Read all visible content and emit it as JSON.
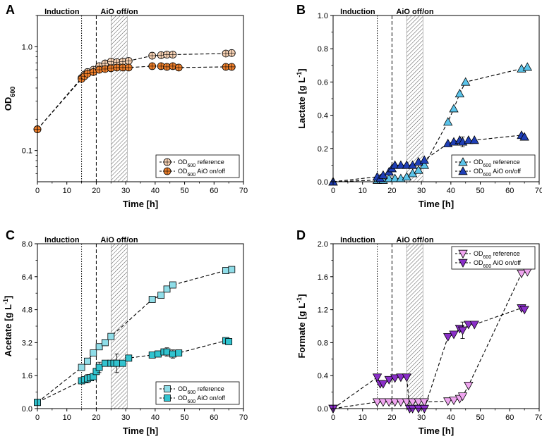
{
  "figure": {
    "background": "#ffffff"
  },
  "chart_data": [
    {
      "panel": "A",
      "type": "scatter",
      "yscale": "log",
      "xlabel": "Time [h]",
      "ylabel": "OD600",
      "xlim": [
        0,
        70
      ],
      "ylim": [
        0.05,
        2.0
      ],
      "xticks": [
        0,
        10,
        20,
        30,
        40,
        50,
        60,
        70
      ],
      "yticks": [
        0.1,
        1.0
      ],
      "ytick_labels": [
        "0.1",
        "1.0"
      ],
      "vlines": [
        {
          "x": 15,
          "style": "dotted"
        },
        {
          "x": 20,
          "style": "dashed"
        }
      ],
      "shade": [
        25,
        30.5
      ],
      "annotations": [
        "Induction",
        "AiO off/on"
      ],
      "legend_position": "bottom-right",
      "series": [
        {
          "name": "OD600 reference",
          "legend_main": "OD",
          "legend_sub": "600",
          "legend_suffix": " reference",
          "marker": "circle-cross",
          "color": "#f7d2b4",
          "filled": false,
          "x": [
            0,
            15,
            16,
            17,
            19,
            21,
            23,
            25,
            27,
            29,
            31,
            39,
            42,
            44,
            46,
            64,
            66
          ],
          "y": [
            0.16,
            0.5,
            0.54,
            0.57,
            0.6,
            0.65,
            0.69,
            0.72,
            0.71,
            0.72,
            0.73,
            0.82,
            0.83,
            0.84,
            0.84,
            0.86,
            0.87
          ],
          "err": [
            0,
            0,
            0,
            0,
            0,
            0,
            0,
            0,
            0,
            0,
            0,
            0,
            0,
            0,
            0,
            0,
            0
          ]
        },
        {
          "name": "OD600 AiO on/off",
          "legend_main": "OD",
          "legend_sub": "600",
          "legend_suffix": " AiO on/off",
          "marker": "circle-cross",
          "color": "#ee7f2b",
          "filled": true,
          "x": [
            0,
            15,
            16,
            17,
            19,
            21,
            23,
            25,
            27,
            29,
            31,
            39,
            42,
            44,
            46,
            48,
            64,
            66
          ],
          "y": [
            0.16,
            0.49,
            0.52,
            0.55,
            0.57,
            0.6,
            0.61,
            0.62,
            0.63,
            0.63,
            0.63,
            0.65,
            0.65,
            0.64,
            0.65,
            0.63,
            0.64,
            0.64
          ],
          "err": [
            0,
            0,
            0,
            0,
            0,
            0,
            0,
            0,
            0,
            0,
            0,
            0,
            0,
            0,
            0,
            0,
            0,
            0
          ]
        }
      ]
    },
    {
      "panel": "B",
      "type": "scatter",
      "yscale": "linear",
      "xlabel": "Time [h]",
      "ylabel_main": "Lactate [g L",
      "ylabel_sup": "-1",
      "ylabel_end": "]",
      "xlim": [
        0,
        70
      ],
      "ylim": [
        0,
        1.0
      ],
      "xticks": [
        0,
        10,
        20,
        30,
        40,
        50,
        60,
        70
      ],
      "yticks": [
        0.0,
        0.2,
        0.4,
        0.6,
        0.8,
        1.0
      ],
      "ytick_labels": [
        "0.0",
        "0.2",
        "0.4",
        "0.6",
        "0.8",
        "1.0"
      ],
      "vlines": [
        {
          "x": 15,
          "style": "dotted"
        },
        {
          "x": 20,
          "style": "dashed"
        }
      ],
      "shade": [
        25,
        30.5
      ],
      "annotations": [
        "Induction",
        "AiO off/on"
      ],
      "legend_position": "bottom-right",
      "series": [
        {
          "name": "OD600 reference",
          "legend_main": "OD",
          "legend_sub": "600",
          "legend_suffix": " reference",
          "marker": "triangle-up",
          "color": "#5bc4ea",
          "filled": true,
          "x": [
            0,
            15,
            17,
            19,
            21,
            23,
            25,
            27,
            29,
            31,
            39,
            41,
            43,
            45,
            64,
            66
          ],
          "y": [
            0.0,
            0.01,
            0.01,
            0.02,
            0.02,
            0.02,
            0.03,
            0.05,
            0.07,
            0.1,
            0.36,
            0.44,
            0.53,
            0.6,
            0.68,
            0.69
          ],
          "err": [
            0,
            0,
            0,
            0,
            0,
            0,
            0,
            0,
            0,
            0,
            0,
            0,
            0,
            0,
            0,
            0
          ]
        },
        {
          "name": "OD600 AiO on/off",
          "legend_main": "OD",
          "legend_sub": "600",
          "legend_suffix": " AiO on/off",
          "marker": "triangle-up",
          "color": "#1f3fb7",
          "filled": true,
          "x": [
            0,
            15,
            16,
            17,
            19,
            20,
            21,
            23,
            25,
            27,
            29,
            31,
            39,
            41,
            43,
            44,
            46,
            48,
            64,
            65
          ],
          "y": [
            0.0,
            0.03,
            0.02,
            0.04,
            0.06,
            0.08,
            0.1,
            0.1,
            0.1,
            0.1,
            0.12,
            0.13,
            0.23,
            0.24,
            0.25,
            0.24,
            0.25,
            0.25,
            0.28,
            0.27
          ],
          "err": [
            0,
            0,
            0,
            0,
            0,
            0,
            0,
            0,
            0,
            0,
            0,
            0,
            0,
            0,
            0,
            0.03,
            0,
            0,
            0,
            0
          ]
        }
      ]
    },
    {
      "panel": "C",
      "type": "scatter",
      "yscale": "linear",
      "xlabel": "Time [h]",
      "ylabel_main": "Acetate [g L",
      "ylabel_sup": "-1",
      "ylabel_end": "]",
      "xlim": [
        0,
        70
      ],
      "ylim": [
        0,
        8.0
      ],
      "xticks": [
        0,
        10,
        20,
        30,
        40,
        50,
        60,
        70
      ],
      "yticks": [
        0.0,
        1.6,
        3.2,
        4.8,
        6.4,
        8.0
      ],
      "ytick_labels": [
        "0.0",
        "1.6",
        "3.2",
        "4.8",
        "6.4",
        "8.0"
      ],
      "vlines": [
        {
          "x": 15,
          "style": "dotted"
        },
        {
          "x": 20,
          "style": "dashed"
        }
      ],
      "shade": [
        25,
        30.5
      ],
      "annotations": [
        "Induction",
        "AiO off/on"
      ],
      "legend_position": "bottom-right",
      "series": [
        {
          "name": "OD600 reference",
          "legend_main": "OD",
          "legend_sub": "600",
          "legend_suffix": " reference",
          "marker": "square",
          "color": "#8fdde8",
          "filled": true,
          "x": [
            0,
            15,
            17,
            19,
            21,
            23,
            25,
            39,
            42,
            44,
            46,
            64,
            66
          ],
          "y": [
            0.3,
            2.0,
            2.3,
            2.7,
            3.0,
            3.2,
            3.5,
            5.3,
            5.5,
            5.8,
            6.0,
            6.7,
            6.75
          ],
          "err": [
            0,
            0,
            0,
            0,
            0,
            0,
            0,
            0,
            0,
            0,
            0,
            0,
            0
          ]
        },
        {
          "name": "OD600 AiO on/off",
          "legend_main": "OD",
          "legend_sub": "600",
          "legend_suffix": " AiO on/off",
          "marker": "square",
          "color": "#31c3cf",
          "filled": true,
          "x": [
            0,
            15,
            16,
            17,
            18,
            19,
            20,
            21,
            23,
            25,
            26,
            27,
            29,
            31,
            39,
            41,
            43,
            44,
            46,
            48,
            64,
            65
          ],
          "y": [
            0.3,
            1.35,
            1.4,
            1.45,
            1.5,
            1.55,
            1.8,
            2.0,
            2.2,
            2.2,
            2.2,
            2.2,
            2.2,
            2.45,
            2.6,
            2.65,
            2.75,
            2.75,
            2.65,
            2.7,
            3.3,
            3.25
          ],
          "err": [
            0,
            0,
            0,
            0.2,
            0,
            0,
            0,
            0.25,
            0,
            0,
            0,
            0.45,
            0,
            0,
            0,
            0,
            0,
            0.2,
            0.2,
            0,
            0,
            0
          ]
        }
      ]
    },
    {
      "panel": "D",
      "type": "scatter",
      "yscale": "linear",
      "xlabel": "Time [h]",
      "ylabel_main": "Formate [g L",
      "ylabel_sup": "-1",
      "ylabel_end": "]",
      "xlim": [
        0,
        70
      ],
      "ylim": [
        0,
        2.0
      ],
      "xticks": [
        0,
        10,
        20,
        30,
        40,
        50,
        60,
        70
      ],
      "yticks": [
        0.0,
        0.4,
        0.8,
        1.2,
        1.6,
        2.0
      ],
      "ytick_labels": [
        "0.0",
        "0.4",
        "0.8",
        "1.2",
        "1.6",
        "2.0"
      ],
      "vlines": [
        {
          "x": 15,
          "style": "dotted"
        },
        {
          "x": 20,
          "style": "dashed"
        }
      ],
      "shade": [
        25,
        30.5
      ],
      "annotations": [
        "Induction",
        "AiO off/on"
      ],
      "legend_position": "top-right",
      "series": [
        {
          "name": "OD600 reference",
          "legend_main": "OD",
          "legend_sub": "600",
          "legend_suffix": " reference",
          "marker": "triangle-down",
          "color": "#f0a6f0",
          "filled": true,
          "x": [
            0,
            15,
            17,
            19,
            21,
            23,
            25,
            27,
            29,
            31,
            39,
            41,
            43,
            44,
            46,
            64,
            66
          ],
          "y": [
            0.0,
            0.08,
            0.08,
            0.08,
            0.08,
            0.08,
            0.08,
            0.08,
            0.08,
            0.08,
            0.09,
            0.1,
            0.12,
            0.15,
            0.28,
            1.64,
            1.66
          ],
          "err": [
            0,
            0,
            0,
            0,
            0,
            0,
            0,
            0,
            0,
            0,
            0,
            0,
            0,
            0,
            0,
            0,
            0
          ]
        },
        {
          "name": "OD600 AiO on/off",
          "legend_main": "OD",
          "legend_sub": "600",
          "legend_suffix": " AiO on/off",
          "marker": "triangle-down",
          "color": "#8b2fc9",
          "filled": true,
          "x": [
            0,
            15,
            16,
            17,
            19,
            21,
            23,
            25,
            26,
            27,
            29,
            31,
            39,
            41,
            43,
            44,
            46,
            48,
            64,
            65
          ],
          "y": [
            0.0,
            0.38,
            0.3,
            0.3,
            0.35,
            0.37,
            0.38,
            0.38,
            0.0,
            0.0,
            0.0,
            0.0,
            0.87,
            0.9,
            0.97,
            0.95,
            1.02,
            1.02,
            1.22,
            1.2
          ],
          "err": [
            0,
            0,
            0,
            0,
            0,
            0,
            0,
            0,
            0,
            0,
            0,
            0,
            0,
            0,
            0,
            0.1,
            0,
            0,
            0,
            0
          ]
        }
      ]
    }
  ]
}
